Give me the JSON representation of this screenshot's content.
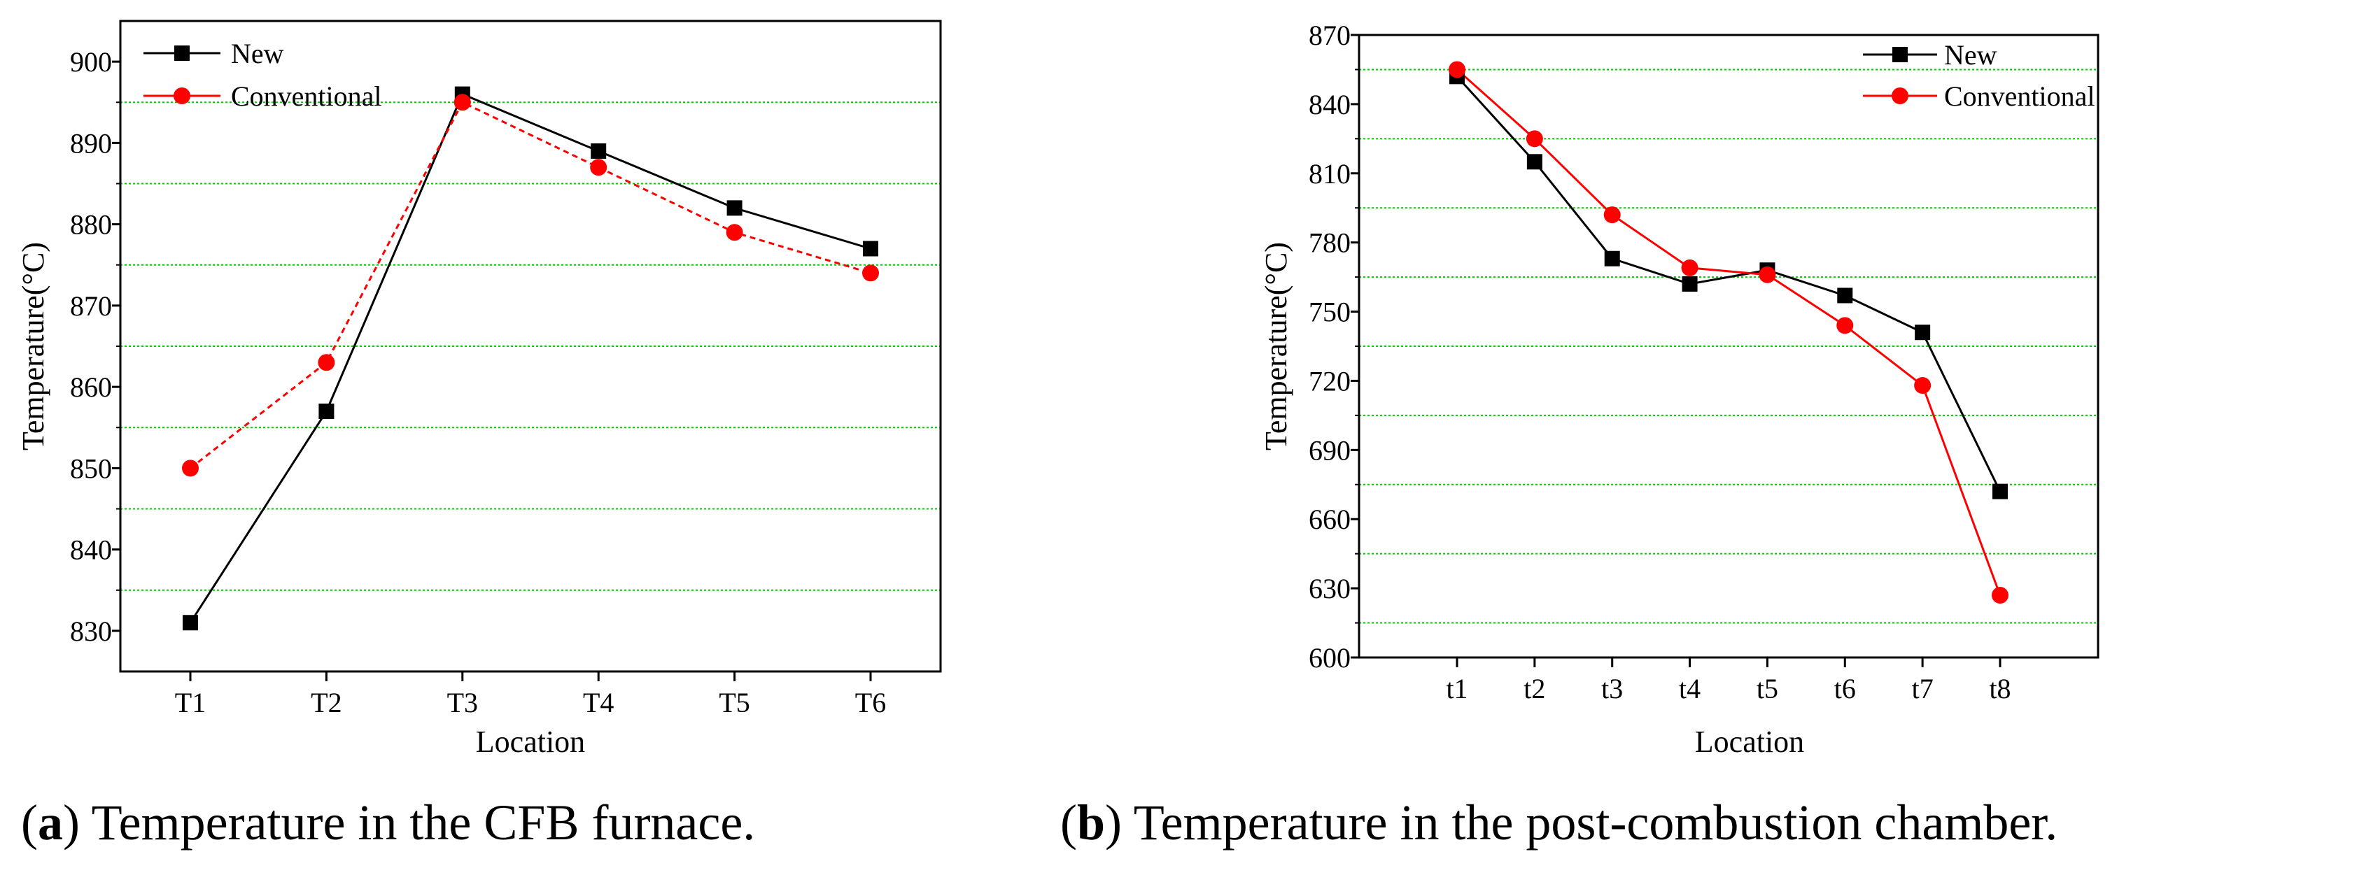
{
  "chart_data": [
    {
      "id": "a",
      "type": "line",
      "caption_label": "a",
      "caption_text": "Temperature in the CFB furnace.",
      "xlabel": "Location",
      "ylabel": "Temperature(°C)",
      "categories": [
        "T1",
        "T2",
        "T3",
        "T4",
        "T5",
        "T6"
      ],
      "ylim": [
        825,
        905
      ],
      "yticks": [
        830,
        840,
        850,
        860,
        870,
        880,
        890,
        900
      ],
      "grid_lines": [
        835,
        845,
        855,
        865,
        875,
        885,
        895
      ],
      "grid_color": "#00cc00",
      "legend_position": "top-left",
      "series": [
        {
          "name": "New",
          "color": "#000000",
          "marker": "square",
          "line_style": "solid",
          "values": [
            831,
            857,
            896,
            889,
            882,
            877
          ]
        },
        {
          "name": "Conventional",
          "color": "#ff0000",
          "marker": "circle",
          "line_style": "dashed",
          "values": [
            850,
            863,
            895,
            887,
            879,
            874
          ]
        }
      ]
    },
    {
      "id": "b",
      "type": "line",
      "caption_label": "b",
      "caption_text": "Temperature in the post-combustion chamber.",
      "xlabel": "Location",
      "ylabel": "Temperature(°C)",
      "categories": [
        "t1",
        "t2",
        "t3",
        "t4",
        "t5",
        "t6",
        "t7",
        "t8"
      ],
      "ylim": [
        600,
        870
      ],
      "yticks": [
        600,
        630,
        660,
        690,
        720,
        750,
        780,
        810,
        840,
        870
      ],
      "grid_lines": [
        615,
        645,
        675,
        705,
        735,
        765,
        795,
        825,
        855
      ],
      "grid_color": "#00cc00",
      "legend_position": "top-right",
      "series": [
        {
          "name": "New",
          "color": "#000000",
          "marker": "square",
          "line_style": "solid",
          "values": [
            852,
            815,
            773,
            762,
            768,
            757,
            741,
            672
          ]
        },
        {
          "name": "Conventional",
          "color": "#ff0000",
          "marker": "circle",
          "line_style": "solid",
          "values": [
            855,
            825,
            792,
            769,
            766,
            744,
            718,
            627
          ]
        }
      ]
    }
  ]
}
